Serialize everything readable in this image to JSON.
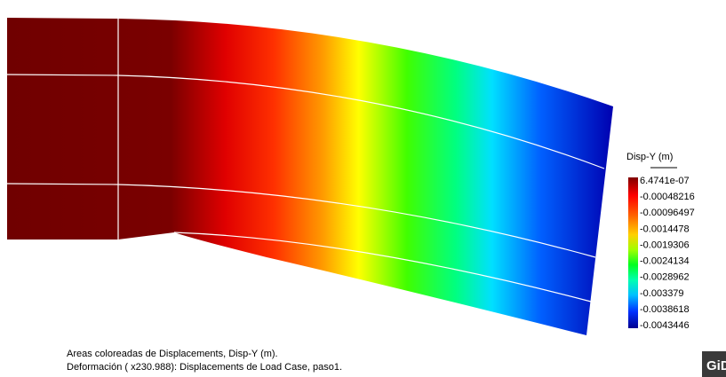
{
  "legend": {
    "title": "Disp-Y (m)",
    "labels": [
      "6.4741e-07",
      "-0.00048216",
      "-0.00096497",
      "-0.0014478",
      "-0.0019306",
      "-0.0024134",
      "-0.0028962",
      "-0.003379",
      "-0.0038618",
      "-0.0043446"
    ]
  },
  "caption": [
    "Areas coloreadas de Displacements, Disp-Y (m).",
    "Deformación ( x230.988): Displacements de Load Case, paso1."
  ],
  "logo": "GiD"
}
